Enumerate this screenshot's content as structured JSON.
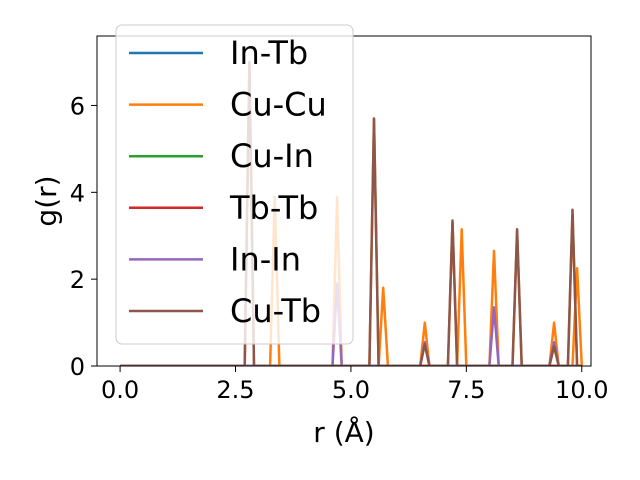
{
  "chart_data": {
    "type": "line",
    "title": "",
    "xlabel": "r (Å)",
    "ylabel": "g(r)",
    "xlim": [
      -0.5,
      10.2
    ],
    "ylim": [
      0,
      7.6
    ],
    "xticks": [
      0.0,
      2.5,
      5.0,
      7.5,
      10.0
    ],
    "xtick_labels": [
      "0.0",
      "2.5",
      "5.0",
      "7.5",
      "10.0"
    ],
    "yticks": [
      0,
      2,
      4,
      6
    ],
    "ytick_labels": [
      "0",
      "2",
      "4",
      "6"
    ],
    "grid": false,
    "legend_position": "upper-left",
    "peak_half_width": 0.1,
    "series": [
      {
        "name": "In-Tb",
        "color": "#1f77b4",
        "peaks": []
      },
      {
        "name": "Cu-Cu",
        "color": "#ff7f0e",
        "peaks": [
          [
            2.8,
            7.0
          ],
          [
            3.35,
            3.9
          ],
          [
            4.7,
            3.9
          ],
          [
            5.5,
            5.7
          ],
          [
            5.7,
            1.8
          ],
          [
            6.6,
            1.0
          ],
          [
            7.2,
            3.3
          ],
          [
            7.4,
            3.15
          ],
          [
            8.1,
            2.65
          ],
          [
            8.6,
            3.1
          ],
          [
            9.4,
            1.0
          ],
          [
            9.8,
            3.5
          ],
          [
            9.9,
            2.25
          ]
        ]
      },
      {
        "name": "Cu-In",
        "color": "#2ca02c",
        "peaks": []
      },
      {
        "name": "Tb-Tb",
        "color": "#d62728",
        "peaks": []
      },
      {
        "name": "In-In",
        "color": "#9467bd",
        "peaks": [
          [
            4.7,
            1.9
          ],
          [
            6.6,
            0.55
          ],
          [
            8.1,
            1.35
          ],
          [
            9.4,
            0.55
          ]
        ]
      },
      {
        "name": "Cu-Tb",
        "color": "#8c564b",
        "peaks": [
          [
            2.8,
            7.0
          ],
          [
            5.5,
            5.7
          ],
          [
            6.6,
            0.5
          ],
          [
            7.2,
            3.35
          ],
          [
            8.6,
            3.15
          ],
          [
            9.4,
            0.45
          ],
          [
            9.8,
            3.6
          ]
        ]
      }
    ]
  }
}
